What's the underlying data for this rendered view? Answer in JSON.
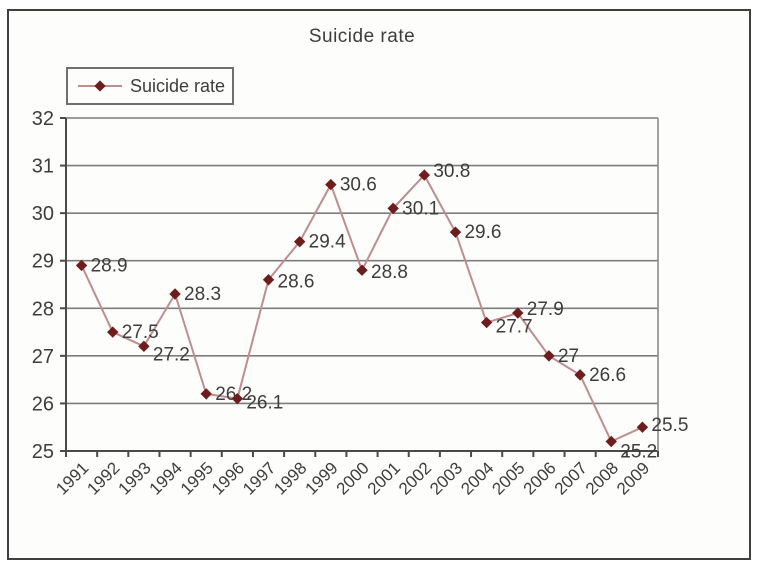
{
  "chart_data": {
    "type": "line",
    "title": "Suicide rate",
    "xlabel": "",
    "ylabel": "",
    "categories": [
      "1991",
      "1992",
      "1993",
      "1994",
      "1995",
      "1996",
      "1997",
      "1998",
      "1999",
      "2000",
      "2001",
      "2002",
      "2003",
      "2004",
      "2005",
      "2006",
      "2007",
      "2008",
      "2009"
    ],
    "series": [
      {
        "name": "Suicide rate",
        "values": [
          28.9,
          27.5,
          27.2,
          28.3,
          26.2,
          26.1,
          28.6,
          29.4,
          30.6,
          28.8,
          30.1,
          30.8,
          29.6,
          27.7,
          27.9,
          27,
          26.6,
          25.2,
          25.5
        ]
      }
    ],
    "data_labels": [
      "28.9",
      "27.5",
      "27.2",
      "28.3",
      "26.2",
      "26.1",
      "28.6",
      "29.4",
      "30.6",
      "28.8",
      "30.1",
      "30.8",
      "29.6",
      "27.7",
      "27.9",
      "27",
      "26.6",
      "25.2",
      "25.5"
    ],
    "yticks": [
      "32",
      "31",
      "30",
      "29",
      "28",
      "27",
      "26",
      "25"
    ],
    "ylim": [
      25,
      32
    ],
    "ytick_step": 1,
    "grid": true,
    "legend_position": "top-left",
    "marker_shape": "diamond"
  },
  "colors": {
    "line": "#bd8e8e",
    "marker": "#6e1d1d",
    "grid": "#7d7d7d",
    "axis": "#4a4a4a",
    "plot_border": "#8a8a8a",
    "text": "#3d3d3d",
    "frame_border": "#3f3f3f",
    "legend_border": "#6f6f6f",
    "background": "#fdfdfc"
  },
  "label_dy": [
    0,
    0,
    8,
    0,
    0,
    4,
    2,
    0,
    0,
    2,
    0,
    -4,
    0,
    4,
    -4,
    0,
    0,
    10,
    -2
  ]
}
